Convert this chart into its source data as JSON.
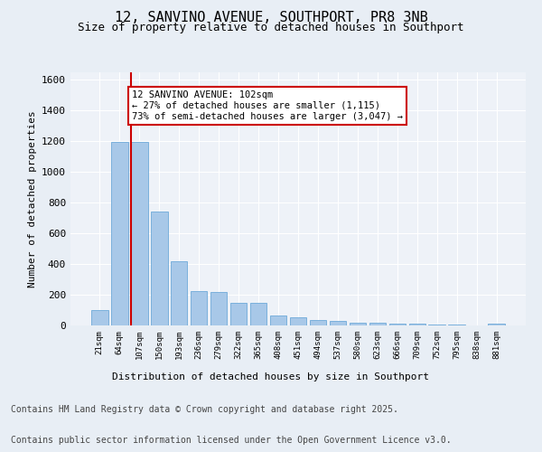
{
  "title_line1": "12, SANVINO AVENUE, SOUTHPORT, PR8 3NB",
  "title_line2": "Size of property relative to detached houses in Southport",
  "xlabel": "Distribution of detached houses by size in Southport",
  "ylabel": "Number of detached properties",
  "categories": [
    "21sqm",
    "64sqm",
    "107sqm",
    "150sqm",
    "193sqm",
    "236sqm",
    "279sqm",
    "322sqm",
    "365sqm",
    "408sqm",
    "451sqm",
    "494sqm",
    "537sqm",
    "580sqm",
    "623sqm",
    "666sqm",
    "709sqm",
    "752sqm",
    "795sqm",
    "838sqm",
    "881sqm"
  ],
  "values": [
    103,
    1195,
    1195,
    740,
    420,
    225,
    220,
    150,
    150,
    65,
    55,
    35,
    30,
    20,
    15,
    10,
    10,
    5,
    5,
    0,
    10
  ],
  "bar_color": "#a8c8e8",
  "bar_edge_color": "#5a9fd4",
  "vline_color": "#cc0000",
  "annotation_text": "12 SANVINO AVENUE: 102sqm\n← 27% of detached houses are smaller (1,115)\n73% of semi-detached houses are larger (3,047) →",
  "annotation_box_color": "white",
  "annotation_box_edge": "#cc0000",
  "ylim": [
    0,
    1650
  ],
  "yticks": [
    0,
    200,
    400,
    600,
    800,
    1000,
    1200,
    1400,
    1600
  ],
  "bg_color": "#e8eef5",
  "plot_bg_color": "#eef2f8",
  "grid_color": "white",
  "footer_line1": "Contains HM Land Registry data © Crown copyright and database right 2025.",
  "footer_line2": "Contains public sector information licensed under the Open Government Licence v3.0.",
  "title_fontsize": 11,
  "subtitle_fontsize": 9,
  "footer_fontsize": 7
}
